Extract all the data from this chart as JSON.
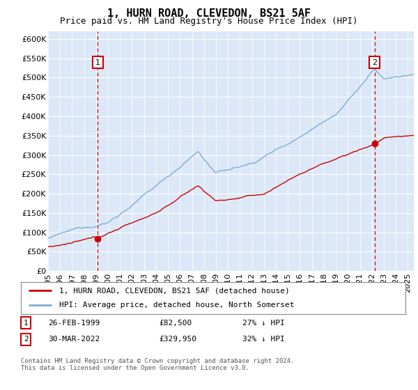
{
  "title": "1, HURN ROAD, CLEVEDON, BS21 5AF",
  "subtitle": "Price paid vs. HM Land Registry's House Price Index (HPI)",
  "ylim": [
    0,
    620000
  ],
  "yticks": [
    0,
    50000,
    100000,
    150000,
    200000,
    250000,
    300000,
    350000,
    400000,
    450000,
    500000,
    550000,
    600000
  ],
  "ytick_labels": [
    "£0",
    "£50K",
    "£100K",
    "£150K",
    "£200K",
    "£250K",
    "£300K",
    "£350K",
    "£400K",
    "£450K",
    "£500K",
    "£550K",
    "£600K"
  ],
  "xlim_start": 1995.0,
  "xlim_end": 2025.5,
  "plot_bg_color": "#dce8f8",
  "grid_color": "#ffffff",
  "red_line_color": "#cc0000",
  "blue_line_color": "#7aadd4",
  "vline_color": "#cc0000",
  "purchase1_x": 1999.15,
  "purchase1_y": 82500,
  "purchase2_x": 2022.24,
  "purchase2_y": 329950,
  "legend_entry1": "1, HURN ROAD, CLEVEDON, BS21 5AF (detached house)",
  "legend_entry2": "HPI: Average price, detached house, North Somerset",
  "annotation1_date": "26-FEB-1999",
  "annotation1_price": "£82,500",
  "annotation1_hpi": "27% ↓ HPI",
  "annotation2_date": "30-MAR-2022",
  "annotation2_price": "£329,950",
  "annotation2_hpi": "32% ↓ HPI",
  "footer": "Contains HM Land Registry data © Crown copyright and database right 2024.\nThis data is licensed under the Open Government Licence v3.0.",
  "title_fontsize": 11,
  "subtitle_fontsize": 9,
  "tick_fontsize": 8,
  "legend_fontsize": 8
}
